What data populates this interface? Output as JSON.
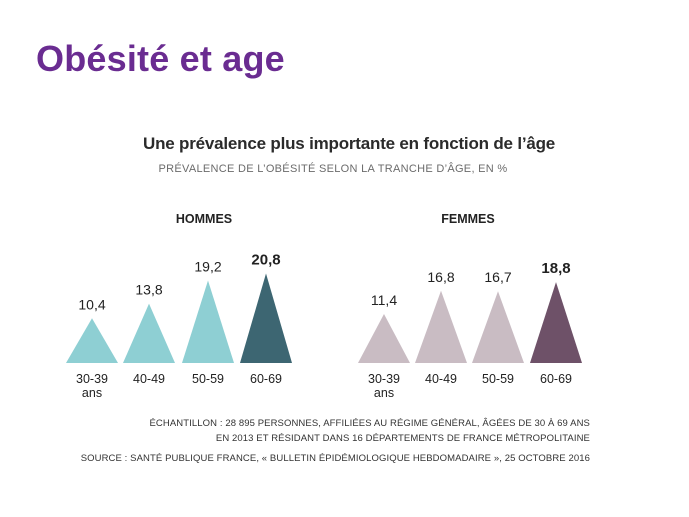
{
  "slide": {
    "title": "Obésité et age"
  },
  "chart_data": {
    "type": "bar",
    "title": "Une prévalence plus importante en fonction de l’âge",
    "subtitle": "PRÉVALENCE DE L’OBÉSITÉ SELON LA TRANCHE D’ÂGE, EN %",
    "categories": [
      "30-39 ans",
      "40-49",
      "50-59",
      "60-69"
    ],
    "groups": [
      {
        "name": "HOMMES",
        "values": [
          10.4,
          13.8,
          19.2,
          20.8
        ],
        "labels": [
          "10,4",
          "13,8",
          "19,2",
          "20,8"
        ],
        "colors": [
          "#8ecfd3",
          "#8ecfd3",
          "#8ecfd3",
          "#3d6672"
        ]
      },
      {
        "name": "FEMMES",
        "values": [
          11.4,
          16.8,
          16.7,
          18.8
        ],
        "labels": [
          "11,4",
          "16,8",
          "16,7",
          "18,8"
        ],
        "colors": [
          "#c9bcc3",
          "#c9bcc3",
          "#c9bcc3",
          "#6e5168"
        ]
      }
    ],
    "highlight": "60-69"
  },
  "footnote": {
    "line1": "ÉCHANTILLON : 28 895 PERSONNES, AFFILIÉES AU RÉGIME GÉNÉRAL, ÂGÉES DE 30 À 69 ANS",
    "line2": "EN 2013 ET RÉSIDANT DANS 16 DÉPARTEMENTS DE FRANCE MÉTROPOLITAINE",
    "line3": "SOURCE :  SANTÉ PUBLIQUE FRANCE, « BULLETIN ÉPIDÉMIOLOGIQUE HEBDOMADAIRE », 25 OCTOBRE 2016"
  }
}
